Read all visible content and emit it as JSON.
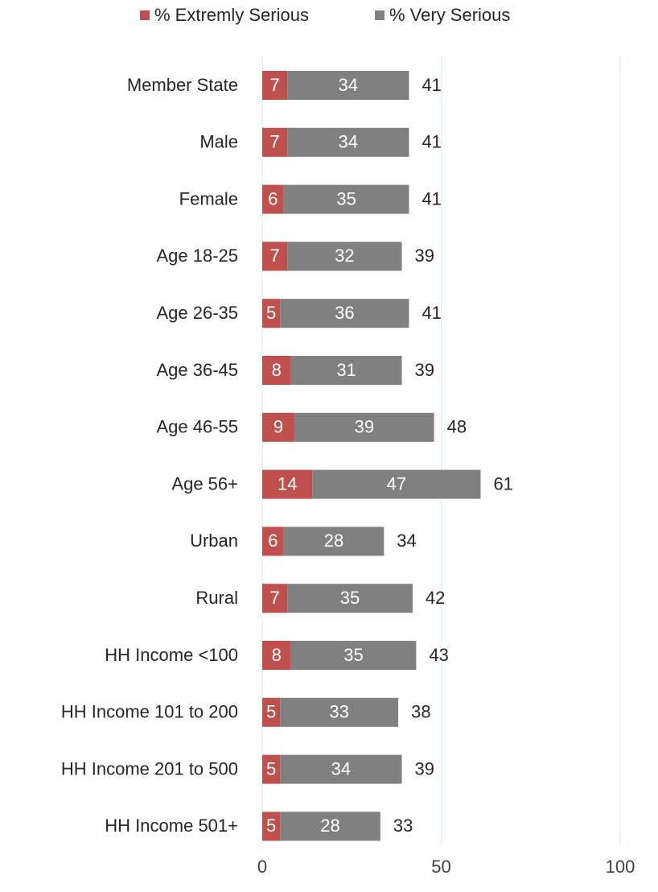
{
  "chart_data": {
    "type": "bar",
    "orientation": "horizontal",
    "stacked": true,
    "categories": [
      "Member State",
      "Male",
      "Female",
      "Age 18-25",
      "Age 26-35",
      "Age 36-45",
      "Age 46-55",
      "Age 56+",
      "Urban",
      "Rural",
      "HH Income <100",
      "HH Income 101 to 200",
      "HH Income 201 to 500",
      "HH Income 501+"
    ],
    "series": [
      {
        "name": "% Extremly Serious",
        "color": "#c0504d",
        "values": [
          7,
          7,
          6,
          7,
          5,
          8,
          9,
          14,
          6,
          7,
          8,
          5,
          5,
          5
        ]
      },
      {
        "name": "% Very Serious",
        "color": "#808080",
        "values": [
          34,
          34,
          35,
          32,
          36,
          31,
          39,
          47,
          28,
          35,
          35,
          33,
          34,
          28
        ]
      }
    ],
    "totals": [
      41,
      41,
      41,
      39,
      41,
      39,
      48,
      61,
      34,
      42,
      43,
      38,
      39,
      33
    ],
    "xlim": [
      0,
      100
    ],
    "xticks": [
      "0",
      "50",
      "100"
    ],
    "grid": true,
    "grid_color": "#d9f3f7",
    "legend_position": "top"
  }
}
